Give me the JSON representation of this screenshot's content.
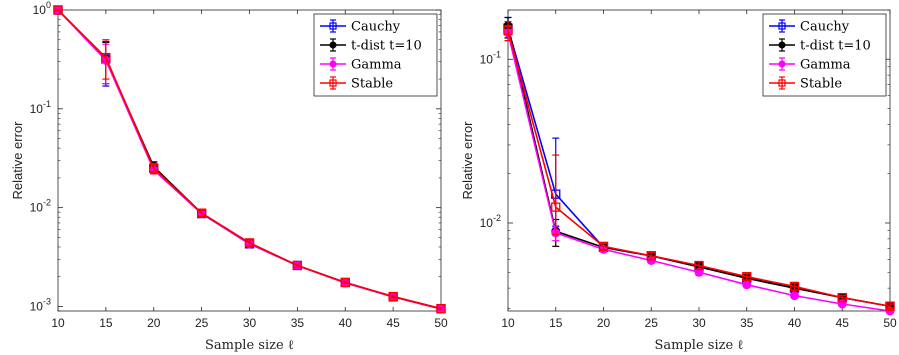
{
  "chart_data": [
    {
      "type": "line",
      "xlabel": "Sample size ℓ",
      "ylabel": "Relative error",
      "x": [
        10,
        15,
        20,
        25,
        30,
        35,
        40,
        45,
        50
      ],
      "xlim": [
        10,
        50
      ],
      "ylim": [
        0.0009,
        1.0
      ],
      "yscale": "log",
      "xticks": [
        "10",
        "15",
        "20",
        "25",
        "30",
        "35",
        "40",
        "45",
        "50"
      ],
      "yticks": [
        {
          "value": 1,
          "mant": "10",
          "exp": "0"
        },
        {
          "value": 0.1,
          "mant": "10",
          "exp": "-1"
        },
        {
          "value": 0.01,
          "mant": "10",
          "exp": "-2"
        },
        {
          "value": 0.001,
          "mant": "10",
          "exp": "-3"
        }
      ],
      "legend": "top-right",
      "grid": false,
      "series": [
        {
          "name": "Cauchy",
          "color": "#0000FF",
          "marker": "square",
          "values": [
            1.0,
            0.32,
            0.025,
            0.0087,
            0.0043,
            0.0026,
            0.00175,
            0.00125,
            0.00095
          ],
          "err_low": [
            0.98,
            0.17,
            0.022,
            0.0081,
            0.0041,
            0.0025,
            0.0017,
            0.00122,
            0.00093
          ],
          "err_high": [
            1.02,
            0.48,
            0.029,
            0.0094,
            0.0046,
            0.0027,
            0.0018,
            0.00129,
            0.00098
          ]
        },
        {
          "name": "t-dist t=10",
          "color": "#000000",
          "marker": "circle",
          "values": [
            1.0,
            0.32,
            0.026,
            0.0088,
            0.0044,
            0.0026,
            0.00175,
            0.00126,
            0.00095
          ],
          "err_low": [
            0.98,
            0.18,
            0.022,
            0.0082,
            0.0041,
            0.0025,
            0.0017,
            0.00122,
            0.00093
          ],
          "err_high": [
            1.02,
            0.47,
            0.029,
            0.0095,
            0.0047,
            0.0027,
            0.0018,
            0.0013,
            0.00098
          ]
        },
        {
          "name": "Gamma",
          "color": "#FF00FF",
          "marker": "circle",
          "values": [
            1.0,
            0.31,
            0.024,
            0.0087,
            0.0043,
            0.0026,
            0.00173,
            0.00125,
            0.00094
          ],
          "err_low": [
            0.98,
            0.18,
            0.022,
            0.0081,
            0.0041,
            0.0025,
            0.0017,
            0.00122,
            0.00092
          ],
          "err_high": [
            1.02,
            0.45,
            0.027,
            0.0093,
            0.0046,
            0.0027,
            0.0018,
            0.00128,
            0.00097
          ]
        },
        {
          "name": "Stable",
          "color": "#FF0000",
          "marker": "square",
          "values": [
            1.0,
            0.33,
            0.025,
            0.0088,
            0.0044,
            0.0026,
            0.00175,
            0.00126,
            0.00095
          ],
          "err_low": [
            0.98,
            0.2,
            0.022,
            0.0082,
            0.0041,
            0.0025,
            0.0017,
            0.00122,
            0.00093
          ],
          "err_high": [
            1.02,
            0.5,
            0.028,
            0.0094,
            0.0047,
            0.0027,
            0.0018,
            0.0013,
            0.00098
          ]
        }
      ]
    },
    {
      "type": "line",
      "xlabel": "Sample size ℓ",
      "ylabel": "Relative error",
      "x": [
        10,
        15,
        20,
        25,
        30,
        35,
        40,
        45,
        50
      ],
      "xlim": [
        10,
        50
      ],
      "ylim": [
        0.0029,
        0.2
      ],
      "yscale": "log",
      "xticks": [
        "10",
        "15",
        "20",
        "25",
        "30",
        "35",
        "40",
        "45",
        "50"
      ],
      "yticks": [
        {
          "value": 0.1,
          "mant": "10",
          "exp": "-1"
        },
        {
          "value": 0.01,
          "mant": "10",
          "exp": "-2"
        }
      ],
      "legend": "top-right",
      "grid": false,
      "series": [
        {
          "name": "Cauchy",
          "color": "#0000FF",
          "marker": "square",
          "values": [
            0.155,
            0.015,
            0.0071,
            0.0063,
            0.0054,
            0.0046,
            0.004,
            0.0035,
            0.0031
          ],
          "err_low": [
            0.135,
            0.0095,
            0.0068,
            0.006,
            0.0051,
            0.0044,
            0.0038,
            0.0034,
            0.003
          ],
          "err_high": [
            0.18,
            0.033,
            0.0074,
            0.0066,
            0.0057,
            0.0048,
            0.0042,
            0.0036,
            0.0032
          ]
        },
        {
          "name": "t-dist t=10",
          "color": "#000000",
          "marker": "circle",
          "values": [
            0.16,
            0.0089,
            0.0071,
            0.0063,
            0.0054,
            0.0046,
            0.004,
            0.0035,
            0.0031
          ],
          "err_low": [
            0.135,
            0.0072,
            0.0068,
            0.006,
            0.0051,
            0.0044,
            0.0038,
            0.0034,
            0.003
          ],
          "err_high": [
            0.18,
            0.0105,
            0.0074,
            0.0066,
            0.0057,
            0.0048,
            0.0042,
            0.0036,
            0.0032
          ]
        },
        {
          "name": "Gamma",
          "color": "#FF00FF",
          "marker": "circle",
          "values": [
            0.145,
            0.0087,
            0.0069,
            0.0059,
            0.005,
            0.0042,
            0.0036,
            0.0032,
            0.0029
          ],
          "err_low": [
            0.13,
            0.0078,
            0.0067,
            0.0057,
            0.0048,
            0.0041,
            0.0035,
            0.0031,
            0.0028
          ],
          "err_high": [
            0.16,
            0.0096,
            0.0071,
            0.0061,
            0.0052,
            0.0043,
            0.0037,
            0.0033,
            0.003
          ]
        },
        {
          "name": "Stable",
          "color": "#FF0000",
          "marker": "square",
          "values": [
            0.15,
            0.0125,
            0.0072,
            0.0063,
            0.0055,
            0.0047,
            0.0041,
            0.0035,
            0.0031
          ],
          "err_low": [
            0.13,
            0.0085,
            0.0069,
            0.006,
            0.0052,
            0.0045,
            0.0039,
            0.0034,
            0.003
          ],
          "err_high": [
            0.17,
            0.026,
            0.0075,
            0.0066,
            0.0058,
            0.0049,
            0.0043,
            0.0036,
            0.0032
          ]
        }
      ]
    }
  ]
}
